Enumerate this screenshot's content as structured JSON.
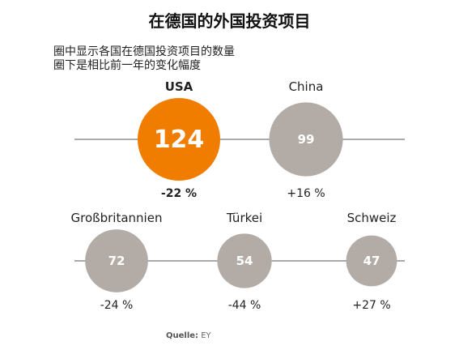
{
  "chart_data": {
    "type": "bubble",
    "title": "在德国的外国投资项目",
    "subtitle_lines": [
      "圈中显示各国在德国投资项目的数量",
      "圈下是相比前一年的变化幅度"
    ],
    "categories": [
      "USA",
      "China",
      "Großbritannien",
      "Türkei",
      "Schweiz"
    ],
    "values": [
      124,
      99,
      72,
      54,
      47
    ],
    "change_labels": [
      "-22 %",
      "+16 %",
      "-24 %",
      "-44 %",
      "+27 %"
    ],
    "change_values": [
      -22,
      16,
      -24,
      -44,
      27
    ],
    "highlight": "USA",
    "colors": {
      "highlight": "#f07d00",
      "default": "#b3aca6",
      "line": "#555555",
      "text_in_circle": "#ffffff"
    }
  },
  "source": {
    "label": "Quelle:",
    "value": "EY"
  }
}
